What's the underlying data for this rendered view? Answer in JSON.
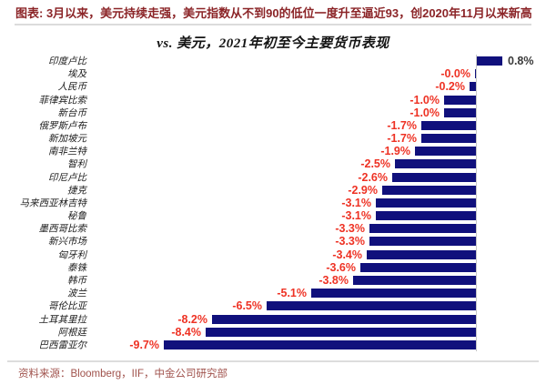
{
  "header": {
    "headline": "图表: 3月以来，美元持续走强，美元指数从不到90的低位一度升至逼近93，创2020年11月以来新高"
  },
  "chart_data": {
    "type": "bar",
    "orientation": "horizontal",
    "title": "vs. 美元，2021年初至今主要货币表现",
    "categories": [
      "印度卢比",
      "埃及",
      "人民币",
      "菲律宾比索",
      "新台币",
      "俄罗斯卢布",
      "新加坡元",
      "南非兰特",
      "智利",
      "印尼卢比",
      "捷克",
      "马来西亚林吉特",
      "秘鲁",
      "墨西哥比索",
      "新兴市场",
      "匈牙利",
      "泰铢",
      "韩币",
      "波兰",
      "哥伦比亚",
      "土耳其里拉",
      "阿根廷",
      "巴西雷亚尔"
    ],
    "values": [
      0.8,
      -0.0,
      -0.2,
      -1.0,
      -1.0,
      -1.7,
      -1.7,
      -1.9,
      -2.5,
      -2.6,
      -2.9,
      -3.1,
      -3.1,
      -3.3,
      -3.3,
      -3.4,
      -3.6,
      -3.8,
      -5.1,
      -6.5,
      -8.2,
      -8.4,
      -9.7
    ],
    "value_labels": [
      "0.8%",
      "-0.0%",
      "-0.2%",
      "-1.0%",
      "-1.0%",
      "-1.7%",
      "-1.7%",
      "-1.9%",
      "-2.5%",
      "-2.6%",
      "-2.9%",
      "-3.1%",
      "-3.1%",
      "-3.3%",
      "-3.3%",
      "-3.4%",
      "-3.6%",
      "-3.8%",
      "-5.1%",
      "-6.5%",
      "-8.2%",
      "-8.4%",
      "-9.7%"
    ],
    "xlabel": "",
    "ylabel": "",
    "xlim": [
      -10,
      1
    ],
    "grid": false,
    "legend": "none",
    "bar_color": "#10107c",
    "negative_label_color": "#ee3224",
    "positive_label_color": "#3a3a3a",
    "axis_line_color": "#c8c8c8"
  },
  "footer": {
    "source": "资料来源：Bloomberg，IIF，中金公司研究部"
  }
}
